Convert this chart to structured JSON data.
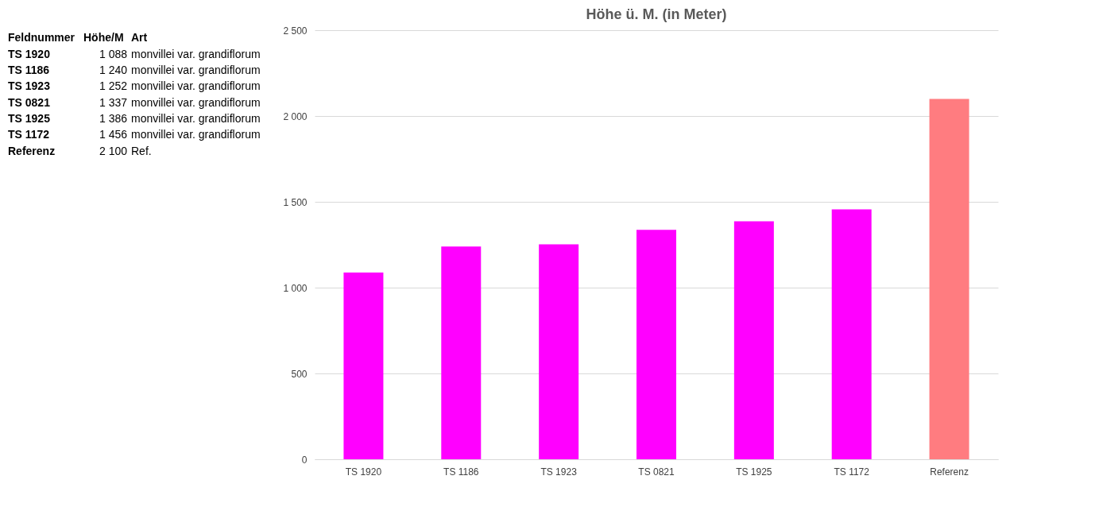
{
  "chart_data": [
    {
      "type": "other",
      "annotations": [
        "Feldnummer",
        "Höhe/M",
        "Art",
        "TS 1920",
        "1 088",
        "monvillei var. grandiflorum",
        "TS 1186",
        "1 240",
        "monvillei var. grandiflorum",
        "TS 1923",
        "1 252",
        "monvillei var. grandiflorum",
        "TS 0821",
        "1 337",
        "monvillei var. grandiflorum",
        "TS 1925",
        "1 386",
        "monvillei var. grandiflorum",
        "TS 1172",
        "1 456",
        "monvillei var. grandiflorum",
        "Referenz",
        "2 100",
        "Ref."
      ]
    },
    {
      "type": "bar",
      "title": "Höhe ü. M. (in Meter)",
      "categories": [
        "TS 1920",
        "TS 1186",
        "TS 1923",
        "TS 0821",
        "TS 1925",
        "TS 1172",
        "Referenz"
      ],
      "values": [
        1088,
        1240,
        1252,
        1337,
        1386,
        1456,
        2100
      ],
      "colors": [
        "#ff00ff",
        "#ff00ff",
        "#ff00ff",
        "#ff00ff",
        "#ff00ff",
        "#ff00ff",
        "#ff7c80"
      ],
      "ylim": [
        0,
        2500
      ],
      "yticks": [
        0,
        500,
        {
          "value": 1000,
          "label": "1 000"
        },
        {
          "value": 1500,
          "label": "1 500"
        },
        {
          "value": 2000,
          "label": "2 000"
        },
        {
          "value": 2500,
          "label": "2 500"
        }
      ],
      "grid": "y"
    }
  ]
}
